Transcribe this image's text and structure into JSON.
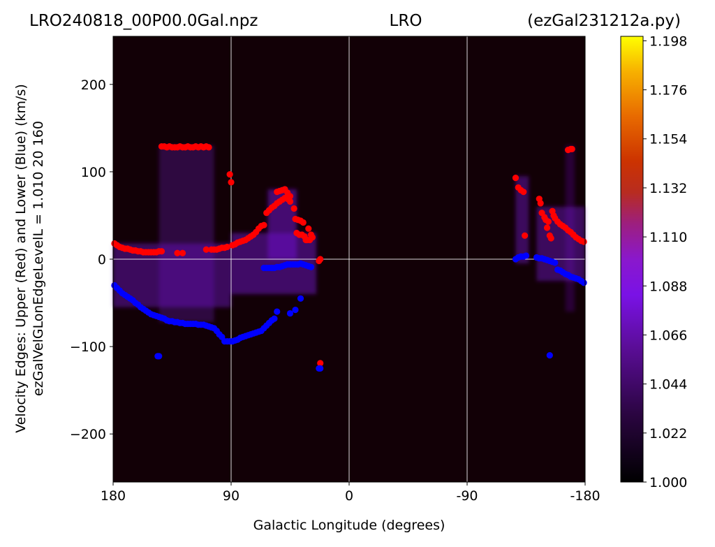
{
  "title": {
    "left": "LRO240818_00P00.0Gal.npz",
    "center": "LRO",
    "right": "(ezGal231212a.py)"
  },
  "chart_data": {
    "type": "heatmap",
    "xlabel": "Galactic Longitude (degrees)",
    "ylabel_line1": "Velocity Edges: Upper (Red) and Lower (Blue) (km/s)",
    "ylabel_line2": "ezGalVelGLonEdgeLevelL = 1.010  20  160",
    "xlim": [
      180,
      -180
    ],
    "ylim": [
      -255,
      255
    ],
    "x_ticks": [
      {
        "value": 180,
        "label": "180"
      },
      {
        "value": 90,
        "label": "90"
      },
      {
        "value": 0,
        "label": "0"
      },
      {
        "value": -90,
        "label": "-90"
      },
      {
        "value": -180,
        "label": "-180"
      }
    ],
    "y_ticks": [
      {
        "value": 200,
        "label": "200"
      },
      {
        "value": 100,
        "label": "100"
      },
      {
        "value": 0,
        "label": "0"
      },
      {
        "value": -100,
        "label": "−100"
      },
      {
        "value": -200,
        "label": "−200"
      }
    ],
    "grid": true,
    "colormap": "gnuplot",
    "colorbar": {
      "min": 1.0,
      "max": 1.2,
      "ticks": [
        "1.000",
        "1.022",
        "1.044",
        "1.066",
        "1.088",
        "1.110",
        "1.132",
        "1.154",
        "1.176",
        "1.198"
      ],
      "tick_values": [
        1.0,
        1.022,
        1.044,
        1.066,
        1.088,
        1.11,
        1.132,
        1.154,
        1.176,
        1.198
      ]
    },
    "series": [
      {
        "color": "#ff0000",
        "points": [
          [
            179,
            18
          ],
          [
            177,
            16
          ],
          [
            175,
            14
          ],
          [
            173,
            13
          ],
          [
            171,
            12
          ],
          [
            169,
            12
          ],
          [
            167,
            11
          ],
          [
            165,
            10
          ],
          [
            163,
            10
          ],
          [
            161,
            9
          ],
          [
            159,
            9
          ],
          [
            157,
            8
          ],
          [
            155,
            8
          ],
          [
            153,
            8
          ],
          [
            151,
            8
          ],
          [
            149,
            8
          ],
          [
            147,
            8
          ],
          [
            145,
            9
          ],
          [
            143,
            9
          ],
          [
            143,
            129
          ],
          [
            141,
            129
          ],
          [
            139,
            128
          ],
          [
            137,
            129
          ],
          [
            135,
            128
          ],
          [
            133,
            128
          ],
          [
            131,
            128
          ],
          [
            129,
            129
          ],
          [
            127,
            128
          ],
          [
            125,
            128
          ],
          [
            123,
            129
          ],
          [
            121,
            128
          ],
          [
            119,
            128
          ],
          [
            117,
            129
          ],
          [
            115,
            128
          ],
          [
            113,
            129
          ],
          [
            111,
            128
          ],
          [
            109,
            129
          ],
          [
            107,
            128
          ],
          [
            131,
            7
          ],
          [
            127,
            7
          ],
          [
            109,
            11
          ],
          [
            105,
            11
          ],
          [
            103,
            11
          ],
          [
            101,
            11
          ],
          [
            99,
            12
          ],
          [
            97,
            13
          ],
          [
            95,
            13
          ],
          [
            93,
            14
          ],
          [
            91,
            97
          ],
          [
            90,
            88
          ],
          [
            89,
            16
          ],
          [
            87,
            17
          ],
          [
            85,
            19
          ],
          [
            83,
            20
          ],
          [
            81,
            21
          ],
          [
            79,
            22
          ],
          [
            77,
            24
          ],
          [
            75,
            26
          ],
          [
            73,
            28
          ],
          [
            71,
            31
          ],
          [
            69,
            35
          ],
          [
            67,
            38
          ],
          [
            65,
            39
          ],
          [
            63,
            53
          ],
          [
            61,
            56
          ],
          [
            59,
            59
          ],
          [
            57,
            61
          ],
          [
            55,
            64
          ],
          [
            53,
            66
          ],
          [
            51,
            68
          ],
          [
            49,
            70
          ],
          [
            47,
            69
          ],
          [
            45,
            66
          ],
          [
            55,
            77
          ],
          [
            53,
            78
          ],
          [
            51,
            79
          ],
          [
            49,
            80
          ],
          [
            47,
            76
          ],
          [
            45,
            72
          ],
          [
            42,
            58
          ],
          [
            41,
            46
          ],
          [
            39,
            45
          ],
          [
            37,
            44
          ],
          [
            35,
            42
          ],
          [
            40,
            30
          ],
          [
            38,
            28
          ],
          [
            36,
            28
          ],
          [
            34,
            26
          ],
          [
            33,
            22
          ],
          [
            32,
            22
          ],
          [
            30,
            22
          ],
          [
            29,
            28
          ],
          [
            31,
            35
          ],
          [
            28,
            25
          ],
          [
            23,
            -2
          ],
          [
            22,
            0
          ],
          [
            22,
            -119
          ],
          [
            -127,
            93
          ],
          [
            -129,
            82
          ],
          [
            -131,
            79
          ],
          [
            -133,
            77
          ],
          [
            -134,
            27
          ],
          [
            -145,
            69
          ],
          [
            -146,
            64
          ],
          [
            -147,
            53
          ],
          [
            -149,
            48
          ],
          [
            -150,
            45
          ],
          [
            -152,
            43
          ],
          [
            -151,
            36
          ],
          [
            -153,
            27
          ],
          [
            -154,
            24
          ],
          [
            -155,
            55
          ],
          [
            -156,
            50
          ],
          [
            -157,
            47
          ],
          [
            -159,
            43
          ],
          [
            -161,
            40
          ],
          [
            -163,
            38
          ],
          [
            -165,
            36
          ],
          [
            -167,
            33
          ],
          [
            -169,
            31
          ],
          [
            -171,
            28
          ],
          [
            -167,
            125
          ],
          [
            -169,
            126
          ],
          [
            -170,
            126
          ],
          [
            -173,
            25
          ],
          [
            -175,
            23
          ],
          [
            -177,
            21
          ],
          [
            -179,
            20
          ]
        ]
      },
      {
        "color": "#0000ff",
        "points": [
          [
            179,
            -30
          ],
          [
            177,
            -33
          ],
          [
            175,
            -36
          ],
          [
            173,
            -39
          ],
          [
            171,
            -41
          ],
          [
            169,
            -43
          ],
          [
            167,
            -45
          ],
          [
            165,
            -47
          ],
          [
            163,
            -50
          ],
          [
            161,
            -52
          ],
          [
            159,
            -55
          ],
          [
            157,
            -57
          ],
          [
            155,
            -59
          ],
          [
            153,
            -61
          ],
          [
            151,
            -63
          ],
          [
            149,
            -64
          ],
          [
            147,
            -65
          ],
          [
            145,
            -66
          ],
          [
            143,
            -67
          ],
          [
            141,
            -68
          ],
          [
            139,
            -70
          ],
          [
            137,
            -71
          ],
          [
            135,
            -71
          ],
          [
            133,
            -72
          ],
          [
            131,
            -72
          ],
          [
            129,
            -73
          ],
          [
            127,
            -73
          ],
          [
            125,
            -74
          ],
          [
            123,
            -74
          ],
          [
            121,
            -74
          ],
          [
            119,
            -74
          ],
          [
            117,
            -74
          ],
          [
            115,
            -75
          ],
          [
            113,
            -75
          ],
          [
            111,
            -75
          ],
          [
            109,
            -76
          ],
          [
            107,
            -77
          ],
          [
            105,
            -78
          ],
          [
            103,
            -79
          ],
          [
            101,
            -82
          ],
          [
            99,
            -86
          ],
          [
            97,
            -89
          ],
          [
            95,
            -94
          ],
          [
            93,
            -94
          ],
          [
            91,
            -94
          ],
          [
            89,
            -94
          ],
          [
            87,
            -93
          ],
          [
            85,
            -92
          ],
          [
            83,
            -90
          ],
          [
            81,
            -89
          ],
          [
            79,
            -88
          ],
          [
            77,
            -87
          ],
          [
            75,
            -86
          ],
          [
            73,
            -85
          ],
          [
            71,
            -84
          ],
          [
            69,
            -83
          ],
          [
            67,
            -82
          ],
          [
            65,
            -79
          ],
          [
            63,
            -76
          ],
          [
            61,
            -73
          ],
          [
            59,
            -70
          ],
          [
            57,
            -68
          ],
          [
            55,
            -60
          ],
          [
            146,
            -111
          ],
          [
            145,
            -111
          ],
          [
            45,
            -62
          ],
          [
            41,
            -58
          ],
          [
            37,
            -45
          ],
          [
            65,
            -10
          ],
          [
            63,
            -10
          ],
          [
            61,
            -10
          ],
          [
            59,
            -10
          ],
          [
            57,
            -10
          ],
          [
            55,
            -9
          ],
          [
            53,
            -9
          ],
          [
            51,
            -8
          ],
          [
            49,
            -7
          ],
          [
            47,
            -6
          ],
          [
            45,
            -6
          ],
          [
            43,
            -6
          ],
          [
            41,
            -6
          ],
          [
            39,
            -6
          ],
          [
            37,
            -5
          ],
          [
            35,
            -6
          ],
          [
            33,
            -7
          ],
          [
            31,
            -8
          ],
          [
            29,
            -9
          ],
          [
            23,
            -125
          ],
          [
            22,
            -125
          ],
          [
            -127,
            0
          ],
          [
            -129,
            2
          ],
          [
            -131,
            3
          ],
          [
            -133,
            3
          ],
          [
            -135,
            4
          ],
          [
            -143,
            2
          ],
          [
            -145,
            1
          ],
          [
            -147,
            1
          ],
          [
            -149,
            0
          ],
          [
            -151,
            -1
          ],
          [
            -153,
            -2
          ],
          [
            -155,
            -3
          ],
          [
            -157,
            -4
          ],
          [
            -159,
            -12
          ],
          [
            -161,
            -13
          ],
          [
            -163,
            -15
          ],
          [
            -165,
            -17
          ],
          [
            -167,
            -18
          ],
          [
            -169,
            -20
          ],
          [
            -171,
            -21
          ],
          [
            -173,
            -22
          ],
          [
            -175,
            -23
          ],
          [
            -177,
            -25
          ],
          [
            -179,
            -27
          ],
          [
            -153,
            -110
          ]
        ]
      }
    ],
    "emission_regions": [
      {
        "x0": 180,
        "x1": 90,
        "vtop": 18,
        "vbot": -55,
        "level": 0.45
      },
      {
        "x0": 145,
        "x1": 103,
        "vtop": 130,
        "vbot": -72,
        "level": 0.3
      },
      {
        "x0": 90,
        "x1": 25,
        "vtop": 30,
        "vbot": -40,
        "level": 0.5
      },
      {
        "x0": 62,
        "x1": 40,
        "vtop": 80,
        "vbot": 0,
        "level": 0.55
      },
      {
        "x0": -127,
        "x1": -137,
        "vtop": 95,
        "vbot": -5,
        "level": 0.45
      },
      {
        "x0": -143,
        "x1": -180,
        "vtop": 60,
        "vbot": -25,
        "level": 0.45
      },
      {
        "x0": -165,
        "x1": -172,
        "vtop": 130,
        "vbot": -60,
        "level": 0.25
      }
    ]
  }
}
